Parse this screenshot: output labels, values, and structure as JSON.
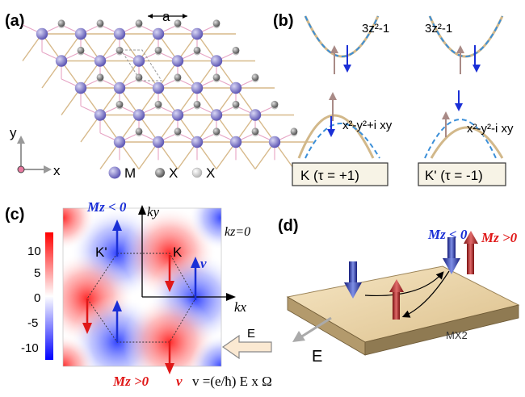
{
  "panels": {
    "a": {
      "label": "(a)",
      "lattice_constant": "a",
      "axis_y": "y",
      "axis_x": "x",
      "legend": [
        {
          "name": "M",
          "color": "#7d78c8"
        },
        {
          "name": "X",
          "color": "#6f6f6f"
        },
        {
          "name": "X",
          "color": "#d9d9d9"
        }
      ]
    },
    "b": {
      "label": "(b)",
      "orbital_top_left": "3z²-1",
      "orbital_top_right": "3z²-1",
      "orbital_bottom_left": "x²-y²+i xy",
      "orbital_bottom_right": "x²-y²-i xy",
      "valley_left": "K (τ  = +1)",
      "valley_right": "K' (τ  = -1)"
    },
    "c": {
      "label": "(c)",
      "colorbar_ticks": [
        "10",
        "5",
        "0",
        "-5",
        "-10"
      ],
      "mz_top": "Mz < 0",
      "mz_bottom": "Mz >0",
      "ky": "ky",
      "kx": "kx",
      "kz_label": "kz=0",
      "k_prime": "K'",
      "k_point": "K",
      "v_label": "v",
      "field": "E",
      "formula": "v =(e/ħ) E x Ω"
    },
    "d": {
      "label": "(d)",
      "mz_neg": "Mz < 0",
      "mz_pos": "Mz >0",
      "material": "MX2",
      "field": "E"
    }
  },
  "colors": {
    "metal": "#7d78c8",
    "chalcogen_dark": "#6f6f6f",
    "chalcogen_light": "#d9d9d9",
    "bond": "#d7b98a",
    "spin_down": "#1a2fd6",
    "spin_up": "#e01818",
    "band": "#d2b88a",
    "band_dash": "#3b8fd8",
    "slab": "#e9d2a6"
  }
}
